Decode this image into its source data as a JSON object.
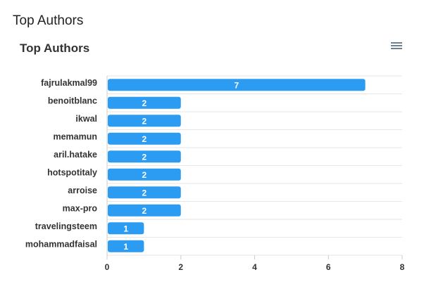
{
  "page": {
    "heading": "Top Authors"
  },
  "chart": {
    "menu_icon": "hamburger-menu-icon",
    "bar_color": "#2b9cf2",
    "grid_color": "#e6e6e6"
  },
  "chart_data": {
    "type": "bar",
    "orientation": "horizontal",
    "title": "Top Authors",
    "categories": [
      "fajrulakmal99",
      "benoitblanc",
      "ikwal",
      "memamun",
      "aril.hatake",
      "hotspotitaly",
      "arroise",
      "max-pro",
      "travelingsteem",
      "mohammadfaisal"
    ],
    "values": [
      7,
      2,
      2,
      2,
      2,
      2,
      2,
      2,
      1,
      1
    ],
    "xlim": [
      0,
      8
    ],
    "xticks": [
      0,
      2,
      4,
      6,
      8
    ],
    "xlabel": "",
    "ylabel": "",
    "data_labels": true,
    "grid": true,
    "legend": "none"
  }
}
